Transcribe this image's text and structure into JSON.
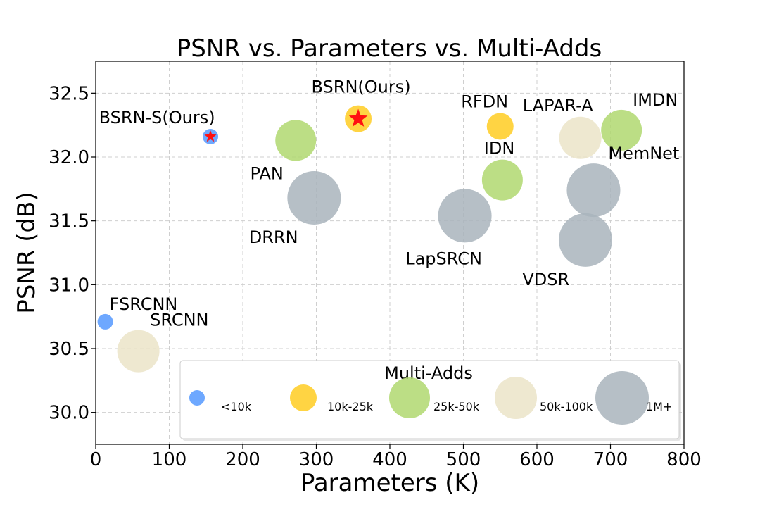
{
  "chart_data": {
    "type": "scatter",
    "title": "PSNR vs. Parameters vs. Multi-Adds",
    "xlabel": "Parameters (K)",
    "ylabel": "PSNR (dB)",
    "xlim": [
      0,
      800
    ],
    "ylim": [
      29.75,
      32.75
    ],
    "xticks": [
      0,
      100,
      200,
      300,
      400,
      500,
      600,
      700,
      800
    ],
    "yticks": [
      30.0,
      30.5,
      31.0,
      31.5,
      32.0,
      32.5
    ],
    "ytick_labels": [
      "30.0",
      "30.5",
      "31.0",
      "31.5",
      "32.0",
      "32.5"
    ],
    "grid": true,
    "categories": [
      {
        "key": "lt10k",
        "label": "<10k",
        "color": "#5599ff"
      },
      {
        "key": "10k25k",
        "label": "10k-25k",
        "color": "#ffcc22"
      },
      {
        "key": "25k50k",
        "label": "25k-50k",
        "color": "#b0d870"
      },
      {
        "key": "50k100k",
        "label": "50k-100k",
        "color": "#ebe4c8"
      },
      {
        "key": "1m",
        "label": "1M+",
        "color": "#a9b4bc"
      }
    ],
    "legend": {
      "title": "Multi-Adds",
      "placement": "lower-center"
    },
    "points": [
      {
        "name": "FSRCNN",
        "x": 13,
        "y": 30.71,
        "category": "lt10k",
        "label_pos": "upper-right"
      },
      {
        "name": "SRCNN",
        "x": 58,
        "y": 30.48,
        "category": "50k100k",
        "label_pos": "upper-right"
      },
      {
        "name": "BSRN-S(Ours)",
        "x": 156,
        "y": 32.16,
        "category": "lt10k",
        "label_pos": "upper-left",
        "star": true
      },
      {
        "name": "PAN",
        "x": 272,
        "y": 32.13,
        "category": "25k50k",
        "label_pos": "lower-left"
      },
      {
        "name": "DRRN",
        "x": 297,
        "y": 31.68,
        "category": "1m",
        "label_pos": "lower-left"
      },
      {
        "name": "BSRN(Ours)",
        "x": 357,
        "y": 32.3,
        "category": "10k25k",
        "label_pos": "upper",
        "star": true
      },
      {
        "name": "LapSRCN",
        "x": 502,
        "y": 31.54,
        "category": "1m",
        "label_pos": "lower"
      },
      {
        "name": "RFDN",
        "x": 550,
        "y": 32.24,
        "category": "10k25k",
        "label_pos": "upper-left"
      },
      {
        "name": "IDN",
        "x": 553,
        "y": 31.82,
        "category": "25k50k",
        "label_pos": "upper-left"
      },
      {
        "name": "LAPAR-A",
        "x": 659,
        "y": 32.15,
        "category": "50k100k",
        "label_pos": "upper-left"
      },
      {
        "name": "VDSR",
        "x": 666,
        "y": 31.35,
        "category": "1m",
        "label_pos": "lower-left"
      },
      {
        "name": "MemNet",
        "x": 677,
        "y": 31.74,
        "category": "1m",
        "label_pos": "upper-right"
      },
      {
        "name": "IMDN",
        "x": 715,
        "y": 32.21,
        "category": "25k50k",
        "label_pos": "upper-right"
      }
    ]
  }
}
